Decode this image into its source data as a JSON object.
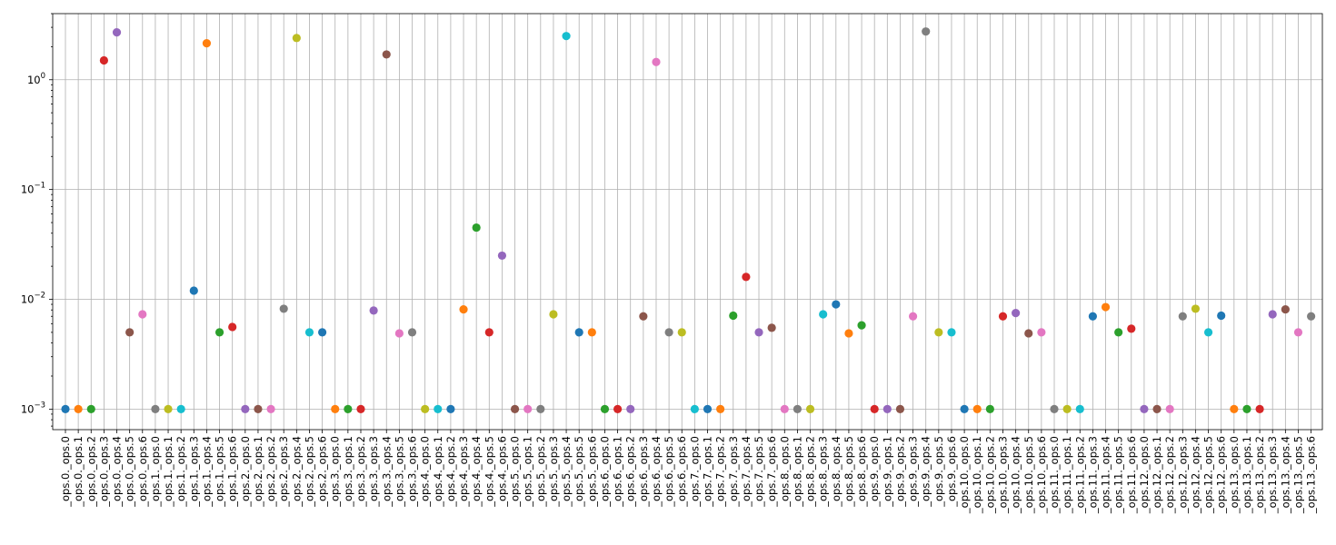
{
  "chart_data": {
    "type": "scatter",
    "title": "",
    "xlabel": "",
    "ylabel": "",
    "yscale": "log",
    "ylim": [
      0.00065,
      4.0
    ],
    "grid": true,
    "y_ticks": [
      {
        "value": 0.001,
        "base": "10",
        "exp": "−3"
      },
      {
        "value": 0.01,
        "base": "10",
        "exp": "−2"
      },
      {
        "value": 0.1,
        "base": "10",
        "exp": "−1"
      },
      {
        "value": 1,
        "base": "10",
        "exp": "0"
      }
    ],
    "categories": [
      "_ops.0._ops.0",
      "_ops.0._ops.1",
      "_ops.0._ops.2",
      "_ops.0._ops.3",
      "_ops.0._ops.4",
      "_ops.0._ops.5",
      "_ops.0._ops.6",
      "_ops.1._ops.0",
      "_ops.1._ops.1",
      "_ops.1._ops.2",
      "_ops.1._ops.3",
      "_ops.1._ops.4",
      "_ops.1._ops.5",
      "_ops.1._ops.6",
      "_ops.2._ops.0",
      "_ops.2._ops.1",
      "_ops.2._ops.2",
      "_ops.2._ops.3",
      "_ops.2._ops.4",
      "_ops.2._ops.5",
      "_ops.2._ops.6",
      "_ops.3._ops.0",
      "_ops.3._ops.1",
      "_ops.3._ops.2",
      "_ops.3._ops.3",
      "_ops.3._ops.4",
      "_ops.3._ops.5",
      "_ops.3._ops.6",
      "_ops.4._ops.0",
      "_ops.4._ops.1",
      "_ops.4._ops.2",
      "_ops.4._ops.3",
      "_ops.4._ops.4",
      "_ops.4._ops.5",
      "_ops.4._ops.6",
      "_ops.5._ops.0",
      "_ops.5._ops.1",
      "_ops.5._ops.2",
      "_ops.5._ops.3",
      "_ops.5._ops.4",
      "_ops.5._ops.5",
      "_ops.5._ops.6",
      "_ops.6._ops.0",
      "_ops.6._ops.1",
      "_ops.6._ops.2",
      "_ops.6._ops.3",
      "_ops.6._ops.4",
      "_ops.6._ops.5",
      "_ops.6._ops.6",
      "_ops.7._ops.0",
      "_ops.7._ops.1",
      "_ops.7._ops.2",
      "_ops.7._ops.3",
      "_ops.7._ops.4",
      "_ops.7._ops.5",
      "_ops.7._ops.6",
      "_ops.8._ops.0",
      "_ops.8._ops.1",
      "_ops.8._ops.2",
      "_ops.8._ops.3",
      "_ops.8._ops.4",
      "_ops.8._ops.5",
      "_ops.8._ops.6",
      "_ops.9._ops.0",
      "_ops.9._ops.1",
      "_ops.9._ops.2",
      "_ops.9._ops.3",
      "_ops.9._ops.4",
      "_ops.9._ops.5",
      "_ops.9._ops.6",
      "_ops.10._ops.0",
      "_ops.10._ops.1",
      "_ops.10._ops.2",
      "_ops.10._ops.3",
      "_ops.10._ops.4",
      "_ops.10._ops.5",
      "_ops.10._ops.6",
      "_ops.11._ops.0",
      "_ops.11._ops.1",
      "_ops.11._ops.2",
      "_ops.11._ops.3",
      "_ops.11._ops.4",
      "_ops.11._ops.5",
      "_ops.11._ops.6",
      "_ops.12._ops.0",
      "_ops.12._ops.1",
      "_ops.12._ops.2",
      "_ops.12._ops.3",
      "_ops.12._ops.4",
      "_ops.12._ops.5",
      "_ops.12._ops.6",
      "_ops.13._ops.0",
      "_ops.13._ops.1",
      "_ops.13._ops.2",
      "_ops.13._ops.3",
      "_ops.13._ops.4",
      "_ops.13._ops.5",
      "_ops.13._ops.6"
    ],
    "values": [
      0.001,
      0.001,
      0.001,
      1.5,
      2.7,
      0.005,
      0.0073,
      0.001,
      0.001,
      0.001,
      0.012,
      2.15,
      0.005,
      0.0056,
      0.001,
      0.001,
      0.001,
      0.0082,
      2.4,
      0.005,
      0.005,
      0.001,
      0.001,
      0.001,
      0.0079,
      1.7,
      0.0049,
      0.005,
      0.001,
      0.001,
      0.001,
      0.0081,
      0.045,
      0.005,
      0.025,
      0.001,
      0.001,
      0.001,
      0.0073,
      2.5,
      0.005,
      0.005,
      0.001,
      0.001,
      0.001,
      0.007,
      1.45,
      0.005,
      0.005,
      0.001,
      0.001,
      0.001,
      0.0071,
      0.016,
      0.005,
      0.0055,
      0.001,
      0.001,
      0.001,
      0.0073,
      0.009,
      0.0049,
      0.0058,
      0.001,
      0.001,
      0.001,
      0.007,
      2.75,
      0.005,
      0.005,
      0.001,
      0.001,
      0.001,
      0.007,
      0.0075,
      0.0049,
      0.005,
      0.001,
      0.001,
      0.001,
      0.007,
      0.0085,
      0.005,
      0.0054,
      0.001,
      0.001,
      0.001,
      0.007,
      0.0082,
      0.005,
      0.0071,
      0.001,
      0.001,
      0.001,
      0.0073,
      0.0081,
      0.005,
      0.007
    ],
    "colors": [
      "#1f77b4",
      "#ff7f0e",
      "#2ca02c",
      "#d62728",
      "#9467bd",
      "#8c564b",
      "#e377c2",
      "#7f7f7f",
      "#bcbd22",
      "#17becf"
    ]
  }
}
